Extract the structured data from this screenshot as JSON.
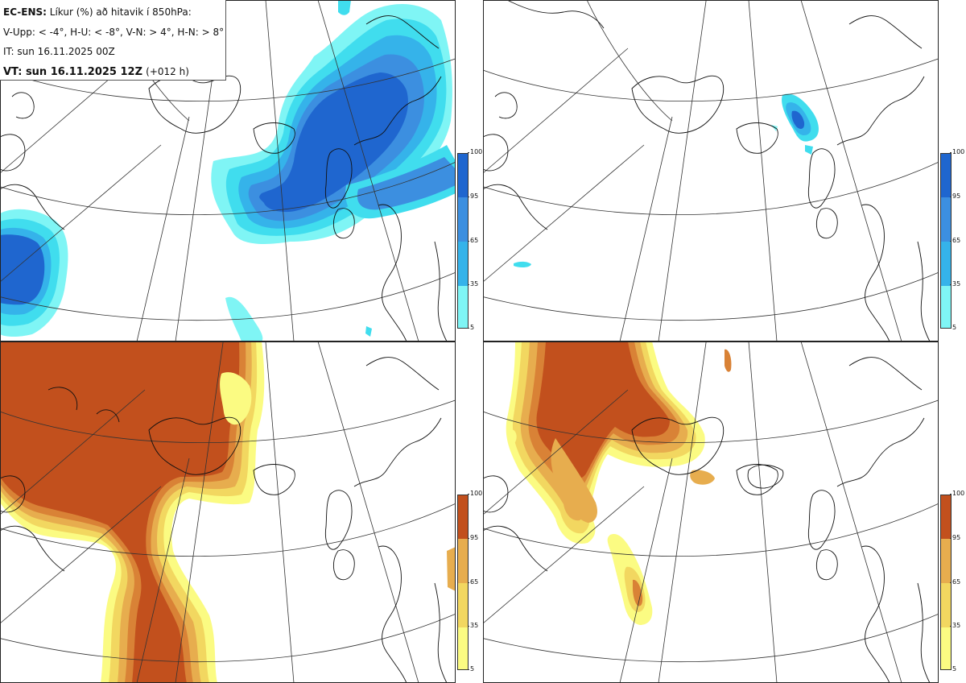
{
  "info": {
    "product_label": "EC-ENS:",
    "title": "Líkur (%) að hitavik í 850hPa:",
    "thresholds": "V-Upp: < -4°, H-U: < -8°, V-N: > 4°, H-N: > 8°",
    "initial_time": "IT: sun 16.11.2025 00Z",
    "valid_label": "VT: sun 16.11.2025 12Z",
    "lead_time": "(+012 h)"
  },
  "colorbar_ticks": [
    "100",
    "95",
    "65",
    "35",
    "5"
  ],
  "colors": {
    "cold": [
      "#7ff5f5",
      "#40ddee",
      "#35b3ea",
      "#3c8fe0",
      "#1f66cf"
    ],
    "warm": [
      "#fbfb82",
      "#f2d760",
      "#e7ad4e",
      "#d98236",
      "#c2501d"
    ],
    "land_outline": "#111111",
    "graticule": "#333333"
  },
  "panels": [
    {
      "id": "panel-tl",
      "quadrant": "V-Upp",
      "palette": "cold"
    },
    {
      "id": "panel-tr",
      "quadrant": "H-U",
      "palette": "cold"
    },
    {
      "id": "panel-bl",
      "quadrant": "V-N",
      "palette": "warm"
    },
    {
      "id": "panel-br",
      "quadrant": "H-N",
      "palette": "warm"
    }
  ]
}
